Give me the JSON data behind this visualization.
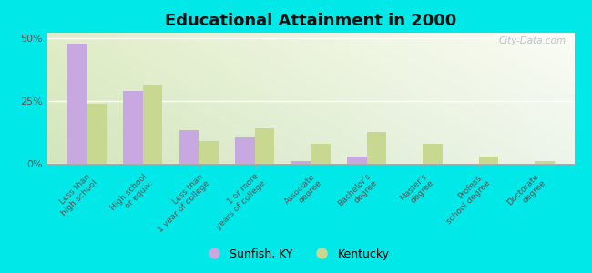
{
  "title": "Educational Attainment in 2000",
  "categories": [
    "Less than\nhigh school",
    "High school\nor equiv.",
    "Less than\n1 year of college",
    "1 or more\nyears of college",
    "Associate\ndegree",
    "Bachelor's\ndegree",
    "Master's\ndegree",
    "Profess.\nschool degree",
    "Doctorate\ndegree"
  ],
  "sunfish_values": [
    47.5,
    29.0,
    13.5,
    10.5,
    1.0,
    3.0,
    0.0,
    0.0,
    0.0
  ],
  "kentucky_values": [
    24.0,
    31.5,
    9.0,
    14.0,
    8.0,
    12.5,
    8.0,
    3.0,
    1.0
  ],
  "sunfish_color": "#c8a8e0",
  "kentucky_color": "#c8d890",
  "outer_bg": "#00e8e8",
  "ylim": [
    0,
    52
  ],
  "yticks": [
    0,
    25,
    50
  ],
  "ytick_labels": [
    "0%",
    "25%",
    "50%"
  ],
  "bar_width": 0.35,
  "watermark": "City-Data.com",
  "grad_color_topleft": "#c8e8a0",
  "grad_color_topright": "#f0f8e0",
  "grad_color_bottom": "#e0f0c0"
}
